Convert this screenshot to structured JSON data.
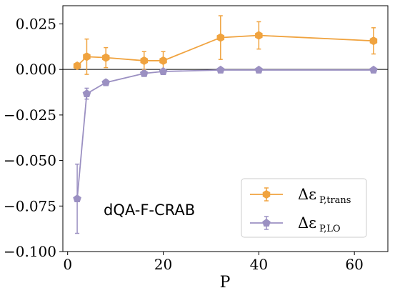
{
  "chart_data": {
    "type": "line",
    "title": "",
    "xlabel": "P",
    "ylabel": "",
    "xlim": [
      -1,
      67
    ],
    "ylim": [
      -0.1,
      0.035
    ],
    "xticks": [
      0,
      20,
      40,
      60
    ],
    "yticks": [
      0.025,
      0.0,
      -0.025,
      -0.05,
      -0.075,
      -0.1
    ],
    "ytick_labels": [
      "0.025",
      "0.000",
      "−0.025",
      "−0.050",
      "−0.075",
      "−0.100"
    ],
    "xtick_labels": [
      "0",
      "20",
      "40",
      "60"
    ],
    "grid": false,
    "zero_line": true,
    "legend_position": "lower-right",
    "annotation": "dQA-F-CRAB",
    "series": [
      {
        "name": "Δε",
        "name_sub": "P,trans",
        "color": "#f0a33f",
        "marker": "hexagon",
        "x": [
          2,
          4,
          8,
          16,
          20,
          32,
          40,
          64
        ],
        "y": [
          0.002,
          0.007,
          0.0065,
          0.0048,
          0.0048,
          0.0175,
          0.0187,
          0.0157
        ],
        "yerr": [
          0.001,
          0.0097,
          0.0055,
          0.005,
          0.005,
          0.012,
          0.0075,
          0.0072
        ]
      },
      {
        "name": "Δε",
        "name_sub": "P,LO",
        "color": "#9b90c2",
        "marker": "pentagon",
        "x": [
          2,
          4,
          8,
          16,
          20,
          32,
          40,
          64
        ],
        "y": [
          -0.071,
          -0.0133,
          -0.0072,
          -0.0022,
          -0.0011,
          -0.0003,
          -0.0003,
          -0.0003
        ],
        "yerr": [
          0.019,
          0.003,
          0.0015,
          0.001,
          0.0008,
          0.0005,
          0.0005,
          0.0005
        ]
      }
    ]
  }
}
